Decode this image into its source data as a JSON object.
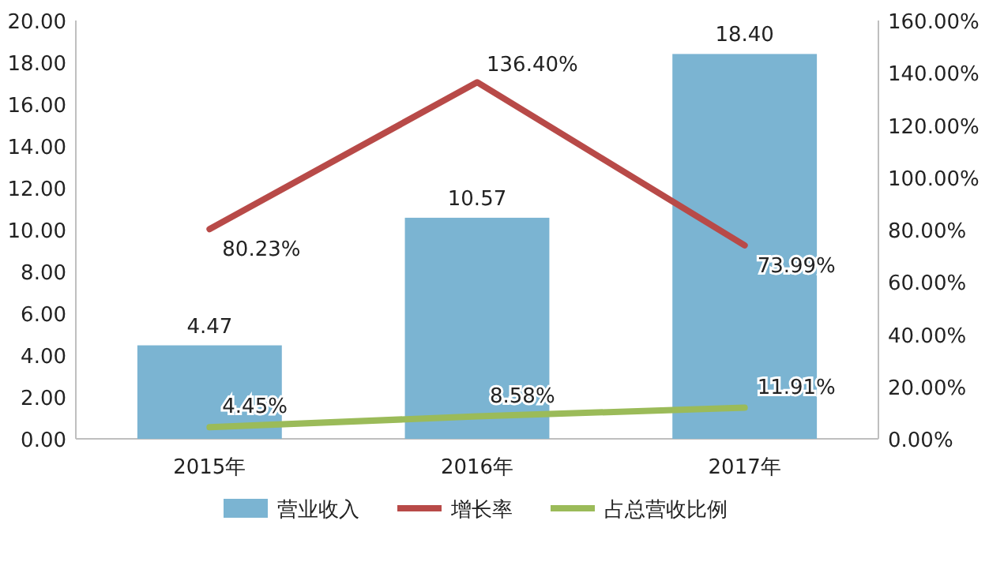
{
  "chart_data": {
    "type": "bar",
    "categories": [
      "2015年",
      "2016年",
      "2017年"
    ],
    "series": [
      {
        "name": "营业收入",
        "color": "#7bb4d2",
        "values": [
          4.47,
          10.57,
          18.4
        ],
        "value_labels": [
          "4.47",
          "10.57",
          "18.40"
        ]
      },
      {
        "name": "增长率",
        "type": "line",
        "axis": "y2",
        "color": "#b84a48",
        "values": [
          80.23,
          136.4,
          73.99
        ],
        "value_labels": [
          "80.23%",
          "136.40%",
          "73.99%"
        ]
      },
      {
        "name": "占总营收比例",
        "type": "line",
        "axis": "y2",
        "color": "#9bbb59",
        "values": [
          4.45,
          8.58,
          11.91
        ],
        "value_labels": [
          "4.45%",
          "8.58%",
          "11.91%"
        ]
      }
    ],
    "ylim": [
      0,
      20
    ],
    "yticks": [
      {
        "value": 0,
        "label": "0.00"
      },
      {
        "value": 2,
        "label": "2.00"
      },
      {
        "value": 4,
        "label": "4.00"
      },
      {
        "value": 6,
        "label": "6.00"
      },
      {
        "value": 8,
        "label": "8.00"
      },
      {
        "value": 10,
        "label": "10.00"
      },
      {
        "value": 12,
        "label": "12.00"
      },
      {
        "value": 14,
        "label": "14.00"
      },
      {
        "value": 16,
        "label": "16.00"
      },
      {
        "value": 18,
        "label": "18.00"
      },
      {
        "value": 20,
        "label": "20.00"
      }
    ],
    "y2lim": [
      0,
      160
    ],
    "y2ticks": [
      {
        "value": 0,
        "label": "0.00%"
      },
      {
        "value": 20,
        "label": "20.00%"
      },
      {
        "value": 40,
        "label": "40.00%"
      },
      {
        "value": 60,
        "label": "60.00%"
      },
      {
        "value": 80,
        "label": "80.00%"
      },
      {
        "value": 100,
        "label": "100.00%"
      },
      {
        "value": 120,
        "label": "120.00%"
      },
      {
        "value": 140,
        "label": "140.00%"
      },
      {
        "value": 160,
        "label": "160.00%"
      }
    ],
    "legend": "bottom"
  }
}
